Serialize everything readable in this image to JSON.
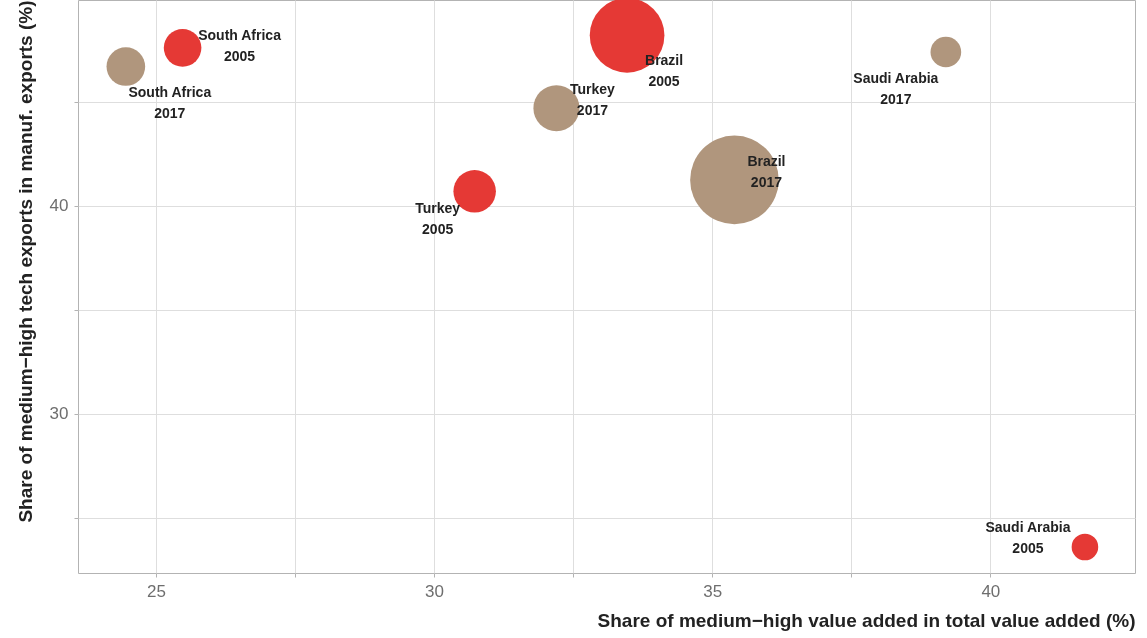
{
  "chart_data": {
    "type": "bubble",
    "xlabel": "Share of medium−high value added in total value added (%)",
    "ylabel": "Share of medium−high tech exports in manuf. exports (%)",
    "xlim": [
      23.6,
      42.6
    ],
    "ylim": [
      22.35,
      49.9
    ],
    "xticks": [
      25,
      {
        "value": 27.5,
        "label": null
      },
      30,
      {
        "value": 32.5,
        "label": null
      },
      35,
      {
        "value": 37.5,
        "label": null
      },
      40
    ],
    "yticks": [
      {
        "value": 25,
        "label": null
      },
      30,
      {
        "value": 35,
        "label": null
      },
      40,
      {
        "value": 45,
        "label": null
      }
    ],
    "grid": true,
    "marker": "circle",
    "series": [
      {
        "color": "#e53935",
        "x": [
          25.48,
          33.47,
          30.73,
          41.7
        ],
        "values": [
          47.6,
          48.2,
          40.7,
          23.6
        ],
        "sizes": [
          0.18,
          0.71,
          0.23,
          0.09
        ]
      },
      {
        "color": "#b0967d",
        "x": [
          24.46,
          35.4,
          32.2,
          39.2
        ],
        "values": [
          46.7,
          41.25,
          44.7,
          47.4
        ],
        "sizes": [
          0.19,
          1,
          0.27,
          0.12
        ]
      }
    ],
    "annotations": [
      {
        "text": "South Africa\n2005",
        "x": 25.48,
        "y": 47.6
      },
      {
        "text": "South Africa\n2017",
        "x": 24.46,
        "y": 46.7
      },
      {
        "text": "Brazil\n2005",
        "x": 33.47,
        "y": 48.2
      },
      {
        "text": "Turkey\n2017",
        "x": 32.2,
        "y": 44.7
      },
      {
        "text": "Turkey\n2005",
        "x": 30.73,
        "y": 40.7
      },
      {
        "text": "Brazil\n2017",
        "x": 35.4,
        "y": 41.25
      },
      {
        "text": "Saudi Arabia\n2017",
        "x": 39.2,
        "y": 47.4
      },
      {
        "text": "Saudi Arabia\n2005",
        "x": 41.7,
        "y": 23.6
      }
    ]
  }
}
